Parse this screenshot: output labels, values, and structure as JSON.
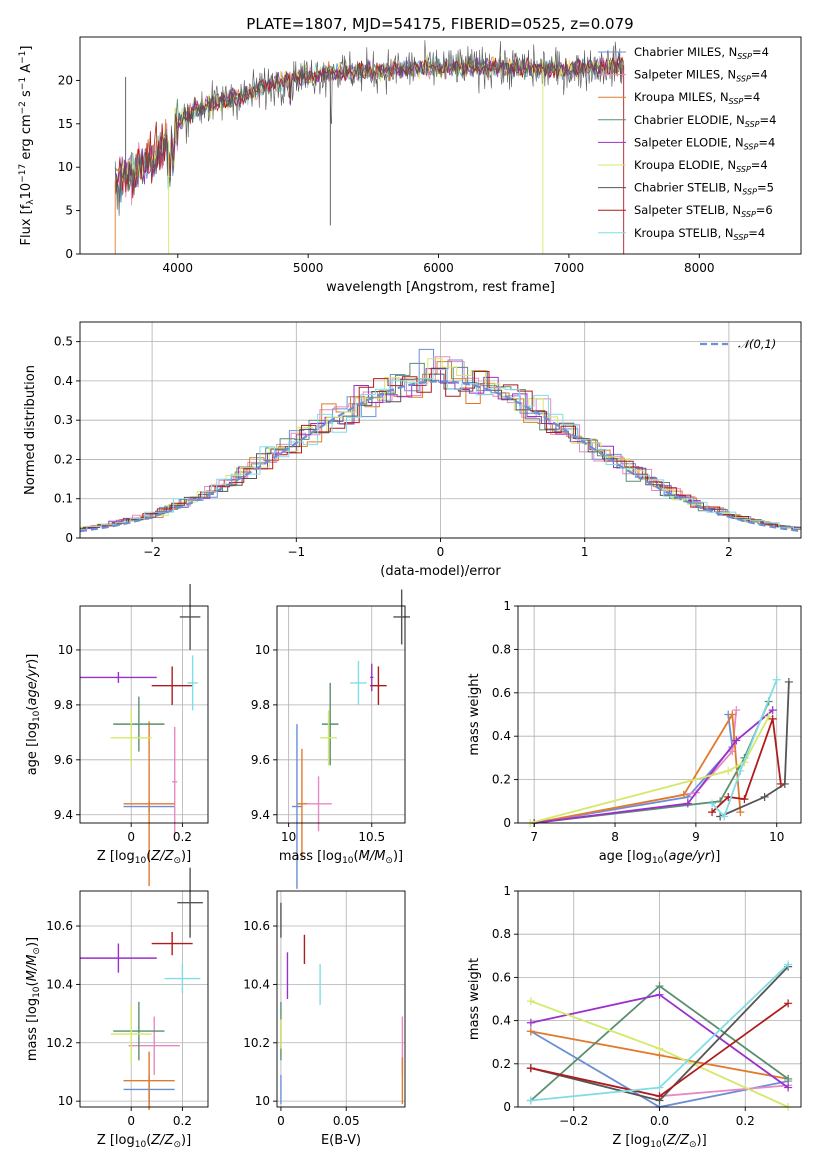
{
  "figure": {
    "title": "PLATE=1807, MJD=54175, FIBERID=0525, z=0.079",
    "colors": {
      "Chabrier MILES": "#6b8fd6",
      "Salpeter MILES": "#e78ac3",
      "Kroupa MILES": "#e07b2e",
      "Chabrier ELODIE": "#5a8f6e",
      "Salpeter ELODIE": "#9932cc",
      "Kroupa ELODIE": "#d4e86a",
      "Chabrier STELIB": "#555555",
      "Salpeter STELIB": "#b01c1c",
      "Kroupa STELIB": "#80dde6"
    }
  },
  "chart_data": [
    {
      "id": "spectrum",
      "type": "line",
      "xlabel": "wavelength [Angstrom, rest frame]",
      "ylabel": "Flux [f_λ 10^-17 erg cm^-2 s^-1 A^-1]",
      "xlim": [
        3250,
        8780
      ],
      "ylim": [
        0,
        25
      ],
      "xticks": [
        4000,
        5000,
        6000,
        7000,
        8000
      ],
      "yticks": [
        0,
        5,
        10,
        15,
        20
      ],
      "grid": false,
      "legend_position": "right",
      "legend": [
        "Chabrier MILES, N_SSP=4",
        "Salpeter MILES, N_SSP=4",
        "Kroupa MILES, N_SSP=4",
        "Chabrier ELODIE, N_SSP=4",
        "Salpeter ELODIE, N_SSP=4",
        "Kroupa ELODIE, N_SSP=4",
        "Chabrier STELIB, N_SSP=5",
        "Salpeter STELIB, N_SSP=6",
        "Kroupa STELIB, N_SSP=4"
      ],
      "legend_parts": [
        [
          "Chabrier MILES, N",
          "SSP",
          "=4"
        ],
        [
          "Salpeter MILES, N",
          "SSP",
          "=4"
        ],
        [
          "Kroupa MILES, N",
          "SSP",
          "=4"
        ],
        [
          "Chabrier ELODIE, N",
          "SSP",
          "=4"
        ],
        [
          "Salpeter ELODIE, N",
          "SSP",
          "=4"
        ],
        [
          "Kroupa ELODIE, N",
          "SSP",
          "=4"
        ],
        [
          "Chabrier STELIB, N",
          "SSP",
          "=5"
        ],
        [
          "Salpeter STELIB, N",
          "SSP",
          "=6"
        ],
        [
          "Kroupa STELIB, N",
          "SSP",
          "=4"
        ]
      ],
      "continuum": {
        "wavelength": [
          3520,
          3700,
          3850,
          3950,
          4000,
          4100,
          4300,
          4500,
          4700,
          4900,
          5100,
          5300,
          5500,
          5800,
          6100,
          6400,
          6700,
          7000,
          7200,
          7420
        ],
        "flux": [
          8.5,
          10.0,
          11.5,
          13.5,
          15.0,
          16.5,
          17.5,
          18.3,
          19.5,
          20.3,
          20.8,
          21.0,
          21.0,
          21.4,
          21.5,
          21.6,
          21.4,
          21.2,
          21.5,
          21.8
        ]
      }
    },
    {
      "id": "residuals",
      "type": "histogram",
      "xlabel": "(data-model)/error",
      "ylabel": "Normed distribution",
      "xlim": [
        -2.5,
        2.5
      ],
      "ylim": [
        0,
        0.55
      ],
      "xticks": [
        -2,
        -1,
        0,
        1,
        2
      ],
      "xtick_labels": [
        "−2",
        "−1",
        "0",
        "1",
        "2"
      ],
      "yticks": [
        0.0,
        0.1,
        0.2,
        0.3,
        0.4,
        0.5
      ],
      "grid": true,
      "reference": {
        "name": "𝒩(0,1)",
        "mean": 0,
        "sigma": 1
      },
      "legend_position": "top-right",
      "bin_width": 0.1
    },
    {
      "id": "age-vs-Z",
      "type": "errorbar",
      "xlabel": "Z [log10(Z/Z⊙)]",
      "ylabel": "age [log10(age/yr)]",
      "xlim": [
        -0.2,
        0.3
      ],
      "ylim": [
        9.37,
        10.16
      ],
      "xticks": [
        0.0,
        0.2
      ],
      "yticks": [
        9.4,
        9.6,
        9.8,
        10.0
      ],
      "grid": true,
      "points": [
        {
          "model": "Chabrier MILES",
          "x": 0.07,
          "xerr": 0.1,
          "y": 9.43,
          "yerr": 0.02
        },
        {
          "model": "Salpeter MILES",
          "x": 0.17,
          "xerr": 0.01,
          "y": 9.52,
          "yerr": 0.2
        },
        {
          "model": "Kroupa MILES",
          "x": 0.07,
          "xerr": 0.1,
          "y": 9.44,
          "yerr": 0.3
        },
        {
          "model": "Chabrier ELODIE",
          "x": 0.03,
          "xerr": 0.1,
          "y": 9.73,
          "yerr": 0.1
        },
        {
          "model": "Salpeter ELODIE",
          "x": -0.05,
          "xerr": 0.15,
          "y": 9.9,
          "yerr": 0.02
        },
        {
          "model": "Kroupa ELODIE",
          "x": 0.0,
          "xerr": 0.08,
          "y": 9.68,
          "yerr": 0.1
        },
        {
          "model": "Chabrier STELIB",
          "x": 0.23,
          "xerr": 0.04,
          "y": 10.12,
          "yerr": 0.12
        },
        {
          "model": "Salpeter STELIB",
          "x": 0.16,
          "xerr": 0.08,
          "y": 9.87,
          "yerr": 0.07
        },
        {
          "model": "Kroupa STELIB",
          "x": 0.24,
          "xerr": 0.02,
          "y": 9.88,
          "yerr": 0.1
        }
      ]
    },
    {
      "id": "age-vs-mass",
      "type": "errorbar",
      "xlabel": "mass [log10(M/M⊙)]",
      "ylabel": "",
      "xlim": [
        9.93,
        10.7
      ],
      "ylim": [
        9.37,
        10.16
      ],
      "xticks": [
        10.0,
        10.5
      ],
      "yticks": [
        9.4,
        9.6,
        9.8,
        10.0
      ],
      "grid": true,
      "points": [
        {
          "model": "Chabrier MILES",
          "x": 10.05,
          "xerr": 0.03,
          "y": 9.43,
          "yerr": 0.3
        },
        {
          "model": "Salpeter MILES",
          "x": 10.18,
          "xerr": 0.08,
          "y": 9.44,
          "yerr": 0.1
        },
        {
          "model": "Kroupa MILES",
          "x": 10.08,
          "xerr": 0.03,
          "y": 9.44,
          "yerr": 0.2
        },
        {
          "model": "Chabrier ELODIE",
          "x": 10.25,
          "xerr": 0.05,
          "y": 9.73,
          "yerr": 0.15
        },
        {
          "model": "Salpeter ELODIE",
          "x": 10.5,
          "xerr": 0.01,
          "y": 9.9,
          "yerr": 0.05
        },
        {
          "model": "Kroupa ELODIE",
          "x": 10.24,
          "xerr": 0.05,
          "y": 9.68,
          "yerr": 0.1
        },
        {
          "model": "Chabrier STELIB",
          "x": 10.68,
          "xerr": 0.05,
          "y": 10.12,
          "yerr": 0.1
        },
        {
          "model": "Salpeter STELIB",
          "x": 10.54,
          "xerr": 0.05,
          "y": 9.87,
          "yerr": 0.07
        },
        {
          "model": "Kroupa STELIB",
          "x": 10.42,
          "xerr": 0.05,
          "y": 9.88,
          "yerr": 0.08
        }
      ]
    },
    {
      "id": "mass-weight-vs-age",
      "type": "line",
      "xlabel": "age [log10(age/yr)]",
      "ylabel": "mass weight",
      "xlim": [
        6.8,
        10.3
      ],
      "ylim": [
        0,
        1.0
      ],
      "xticks": [
        7,
        8,
        9,
        10
      ],
      "yticks": [
        0.0,
        0.2,
        0.4,
        0.6,
        0.8,
        1.0
      ],
      "grid": true,
      "series": [
        {
          "model": "Chabrier MILES",
          "x": [
            7.0,
            8.9,
            9.45,
            9.4
          ],
          "y": [
            0.0,
            0.12,
            0.35,
            0.5
          ]
        },
        {
          "model": "Salpeter MILES",
          "x": [
            7.0,
            9.0,
            9.45,
            9.5
          ],
          "y": [
            0.0,
            0.14,
            0.33,
            0.52
          ]
        },
        {
          "model": "Kroupa MILES",
          "x": [
            7.0,
            8.85,
            9.45,
            9.55
          ],
          "y": [
            0.0,
            0.13,
            0.5,
            0.05
          ]
        },
        {
          "model": "Chabrier ELODIE",
          "x": [
            7.0,
            9.3,
            9.6,
            9.9
          ],
          "y": [
            0.0,
            0.1,
            0.3,
            0.56
          ]
        },
        {
          "model": "Salpeter ELODIE",
          "x": [
            7.0,
            8.9,
            9.5,
            9.95
          ],
          "y": [
            0.0,
            0.09,
            0.38,
            0.52
          ]
        },
        {
          "model": "Kroupa ELODIE",
          "x": [
            6.95,
            9.4,
            9.6,
            9.9
          ],
          "y": [
            0.0,
            0.24,
            0.28,
            0.49
          ]
        },
        {
          "model": "Chabrier STELIB",
          "x": [
            9.3,
            9.85,
            10.1,
            10.15
          ],
          "y": [
            0.03,
            0.12,
            0.18,
            0.65
          ]
        },
        {
          "model": "Salpeter STELIB",
          "x": [
            9.2,
            9.4,
            9.6,
            9.95,
            10.05
          ],
          "y": [
            0.05,
            0.12,
            0.11,
            0.48,
            0.18
          ]
        },
        {
          "model": "Kroupa STELIB",
          "x": [
            9.2,
            9.35,
            9.55,
            10.0
          ],
          "y": [
            0.09,
            0.03,
            0.24,
            0.66
          ]
        }
      ]
    },
    {
      "id": "mass-vs-Z",
      "type": "errorbar",
      "xlabel": "Z [log10(Z/Z⊙)]",
      "ylabel": "mass [log10(M/M⊙)]",
      "xlim": [
        -0.2,
        0.3
      ],
      "ylim": [
        9.98,
        10.72
      ],
      "xticks": [
        0.0,
        0.2
      ],
      "yticks": [
        10.0,
        10.2,
        10.4,
        10.6
      ],
      "grid": true,
      "points": [
        {
          "model": "Chabrier MILES",
          "x": 0.07,
          "xerr": 0.1,
          "y": 10.04,
          "yerr": 0.05
        },
        {
          "model": "Salpeter MILES",
          "x": 0.09,
          "xerr": 0.1,
          "y": 10.19,
          "yerr": 0.1
        },
        {
          "model": "Kroupa MILES",
          "x": 0.07,
          "xerr": 0.1,
          "y": 10.07,
          "yerr": 0.1
        },
        {
          "model": "Chabrier ELODIE",
          "x": 0.03,
          "xerr": 0.1,
          "y": 10.24,
          "yerr": 0.1
        },
        {
          "model": "Salpeter ELODIE",
          "x": -0.05,
          "xerr": 0.15,
          "y": 10.49,
          "yerr": 0.05
        },
        {
          "model": "Kroupa ELODIE",
          "x": 0.0,
          "xerr": 0.08,
          "y": 10.23,
          "yerr": 0.1
        },
        {
          "model": "Chabrier STELIB",
          "x": 0.23,
          "xerr": 0.05,
          "y": 10.68,
          "yerr": 0.12
        },
        {
          "model": "Salpeter STELIB",
          "x": 0.16,
          "xerr": 0.08,
          "y": 10.54,
          "yerr": 0.04
        },
        {
          "model": "Kroupa STELIB",
          "x": 0.2,
          "xerr": 0.07,
          "y": 10.42,
          "yerr": 0.05
        }
      ]
    },
    {
      "id": "mass-vs-ebv",
      "type": "errorbar",
      "xlabel": "E(B-V)",
      "ylabel": "",
      "xlim": [
        -0.003,
        0.095
      ],
      "ylim": [
        9.98,
        10.72
      ],
      "xticks": [
        0.0,
        0.05
      ],
      "yticks": [
        10.0,
        10.2,
        10.4,
        10.6
      ],
      "grid": true,
      "points": [
        {
          "model": "Chabrier MILES",
          "x": 0.0,
          "xerr": 0.0,
          "y": 10.04,
          "yerr": 0.05
        },
        {
          "model": "Salpeter MILES",
          "x": 0.093,
          "xerr": 0.0,
          "y": 10.19,
          "yerr": 0.1
        },
        {
          "model": "Kroupa MILES",
          "x": 0.093,
          "xerr": 0.0,
          "y": 10.07,
          "yerr": 0.08
        },
        {
          "model": "Chabrier ELODIE",
          "x": 0.0,
          "xerr": 0.0,
          "y": 10.24,
          "yerr": 0.1
        },
        {
          "model": "Salpeter ELODIE",
          "x": 0.005,
          "xerr": 0.0,
          "y": 10.43,
          "yerr": 0.08
        },
        {
          "model": "Kroupa ELODIE",
          "x": 0.0,
          "xerr": 0.0,
          "y": 10.23,
          "yerr": 0.05
        },
        {
          "model": "Chabrier STELIB",
          "x": 0.0,
          "xerr": 0.0,
          "y": 10.62,
          "yerr": 0.06
        },
        {
          "model": "Salpeter STELIB",
          "x": 0.018,
          "xerr": 0.0,
          "y": 10.52,
          "yerr": 0.05
        },
        {
          "model": "Kroupa STELIB",
          "x": 0.03,
          "xerr": 0.0,
          "y": 10.4,
          "yerr": 0.07
        }
      ]
    },
    {
      "id": "mass-weight-vs-Z",
      "type": "line",
      "xlabel": "Z [log10(Z/Z⊙)]",
      "ylabel": "mass weight",
      "xlim": [
        -0.33,
        0.33
      ],
      "ylim": [
        0,
        1.0
      ],
      "xticks": [
        -0.2,
        0.0,
        0.2
      ],
      "xtick_labels": [
        "−0.2",
        "0.0",
        "0.2"
      ],
      "yticks": [
        0.0,
        0.2,
        0.4,
        0.6,
        0.8,
        1.0
      ],
      "grid": true,
      "series": [
        {
          "model": "Chabrier MILES",
          "x": [
            -0.3,
            0.0,
            0.3
          ],
          "y": [
            0.35,
            0.0,
            0.12
          ]
        },
        {
          "model": "Salpeter MILES",
          "x": [
            -0.3,
            0.0,
            0.3
          ],
          "y": [
            0.18,
            0.05,
            0.1
          ]
        },
        {
          "model": "Kroupa MILES",
          "x": [
            -0.3,
            0.0,
            0.3
          ],
          "y": [
            0.35,
            0.24,
            0.13
          ]
        },
        {
          "model": "Chabrier ELODIE",
          "x": [
            -0.3,
            0.0,
            0.3
          ],
          "y": [
            0.03,
            0.56,
            0.13
          ]
        },
        {
          "model": "Salpeter ELODIE",
          "x": [
            -0.3,
            0.0,
            0.3
          ],
          "y": [
            0.39,
            0.52,
            0.09
          ]
        },
        {
          "model": "Kroupa ELODIE",
          "x": [
            -0.3,
            0.0,
            0.3
          ],
          "y": [
            0.49,
            0.27,
            0.0
          ]
        },
        {
          "model": "Chabrier STELIB",
          "x": [
            -0.3,
            0.0,
            0.3
          ],
          "y": [
            0.18,
            0.03,
            0.65
          ]
        },
        {
          "model": "Salpeter STELIB",
          "x": [
            -0.3,
            0.0,
            0.3
          ],
          "y": [
            0.18,
            0.05,
            0.48
          ]
        },
        {
          "model": "Kroupa STELIB",
          "x": [
            -0.3,
            0.0,
            0.3
          ],
          "y": [
            0.03,
            0.09,
            0.66
          ]
        }
      ]
    }
  ]
}
